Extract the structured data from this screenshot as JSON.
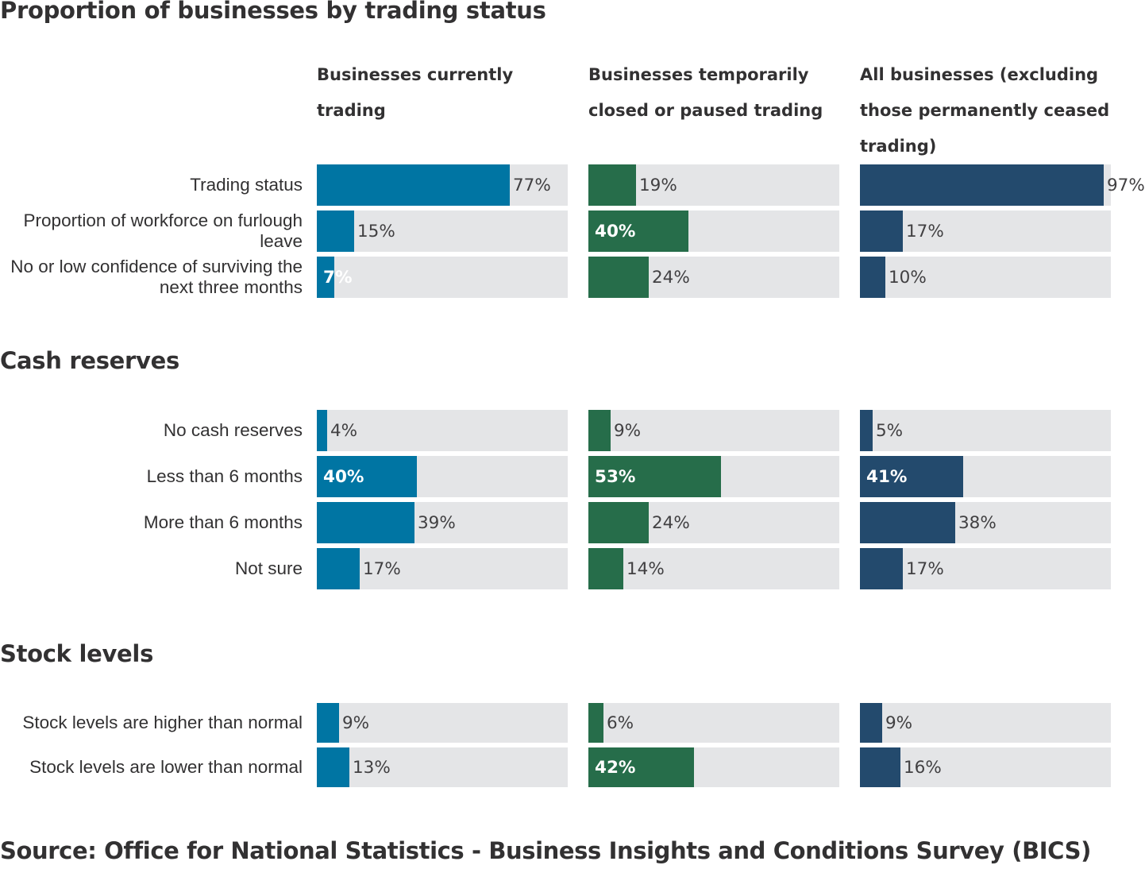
{
  "chart_data": {
    "type": "bar",
    "orientation": "horizontal",
    "value_unit": "%",
    "xlim": [
      0,
      100
    ],
    "grid": false,
    "columns": [
      {
        "label": "Businesses currently trading",
        "color": "#0075a3"
      },
      {
        "label": "Businesses temporarily closed or paused trading",
        "color": "#266d4a"
      },
      {
        "label": "All businesses (excluding those permanently ceased trading)",
        "color": "#234a6d"
      }
    ],
    "sections": [
      {
        "title": "Proportion of businesses by trading status",
        "rows": [
          {
            "label": "Trading status",
            "values": [
              77,
              19,
              97
            ]
          },
          {
            "label": "Proportion of workforce on furlough leave",
            "values": [
              15,
              40,
              17
            ]
          },
          {
            "label": "No or low confidence of surviving the next three months",
            "values": [
              7,
              24,
              10
            ]
          }
        ]
      },
      {
        "title": "Cash reserves",
        "rows": [
          {
            "label": "No cash reserves",
            "values": [
              4,
              9,
              5
            ]
          },
          {
            "label": "Less than 6 months",
            "values": [
              40,
              53,
              41
            ]
          },
          {
            "label": "More than 6 months",
            "values": [
              39,
              24,
              38
            ]
          },
          {
            "label": "Not sure",
            "values": [
              17,
              14,
              17
            ]
          }
        ]
      },
      {
        "title": "Stock levels",
        "rows": [
          {
            "label": "Stock levels are higher than normal",
            "values": [
              9,
              6,
              9
            ]
          },
          {
            "label": "Stock levels are lower than normal",
            "values": [
              13,
              42,
              16
            ]
          }
        ]
      }
    ],
    "highlighted_values": [
      [
        0,
        0,
        0
      ],
      [
        0,
        1,
        0
      ],
      [
        1,
        0,
        0
      ],
      [
        0,
        0,
        0
      ],
      [
        1,
        1,
        1
      ],
      [
        0,
        0,
        0
      ],
      [
        0,
        0,
        0
      ],
      [
        0,
        0,
        0
      ],
      [
        0,
        1,
        0
      ]
    ],
    "source": "Source: Office for National Statistics - Business Insights and Conditions Survey (BICS)"
  }
}
